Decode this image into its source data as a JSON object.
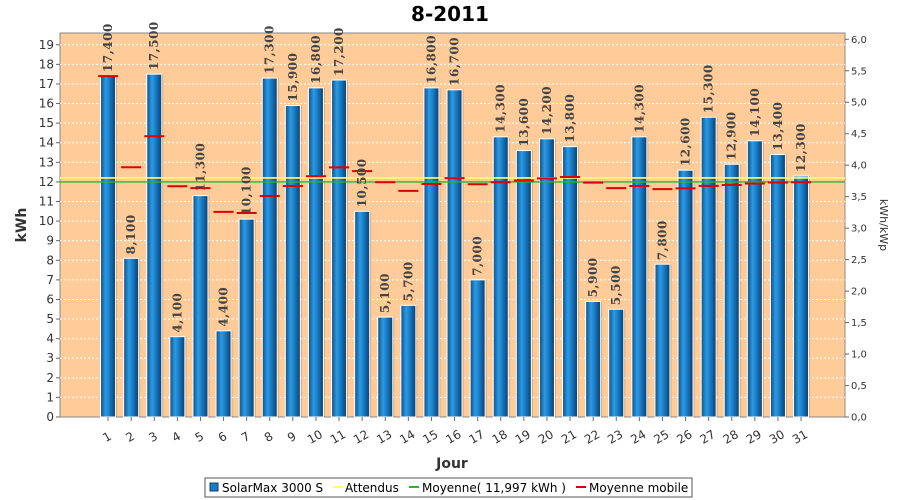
{
  "chart_data": {
    "type": "bar",
    "title": "8-2011",
    "xlabel": "Jour",
    "ylabel": "kWh",
    "y2label": "kWh/kWp",
    "ylim": [
      0,
      19.6
    ],
    "y2lim": [
      0,
      6.1
    ],
    "yticks": [
      "0",
      "1",
      "2",
      "3",
      "4",
      "5",
      "6",
      "7",
      "8",
      "9",
      "10",
      "11",
      "12",
      "13",
      "14",
      "15",
      "16",
      "17",
      "18",
      "19"
    ],
    "y2ticks": [
      "0,0",
      "0,5",
      "1,0",
      "1,5",
      "2,0",
      "2,5",
      "3,0",
      "3,5",
      "4,0",
      "4,5",
      "5,0",
      "5,5",
      "6,0"
    ],
    "categories": [
      "1",
      "2",
      "3",
      "4",
      "5",
      "6",
      "7",
      "8",
      "9",
      "10",
      "11",
      "12",
      "13",
      "14",
      "15",
      "16",
      "17",
      "18",
      "19",
      "20",
      "21",
      "22",
      "23",
      "24",
      "25",
      "26",
      "27",
      "28",
      "29",
      "30",
      "31"
    ],
    "series": [
      {
        "name": "SolarMax 3000 S",
        "color": "#1a7bc4",
        "values": [
          17.4,
          8.1,
          17.5,
          4.1,
          11.3,
          4.4,
          10.1,
          17.3,
          15.9,
          16.8,
          17.2,
          10.5,
          5.1,
          5.7,
          16.8,
          16.7,
          7.0,
          14.3,
          13.6,
          14.2,
          13.8,
          5.9,
          5.5,
          14.3,
          7.8,
          12.6,
          15.3,
          12.9,
          14.1,
          13.4,
          12.3
        ],
        "value_labels": [
          "17,400",
          "8,100",
          "17,500",
          "4,100",
          "11,300",
          "4,400",
          "10,100",
          "17,300",
          "15,900",
          "16,800",
          "17,200",
          "10,500",
          "5,100",
          "5,700",
          "16,800",
          "16,700",
          "7,000",
          "14,300",
          "13,600",
          "14,200",
          "13,800",
          "5,900",
          "5,500",
          "14,300",
          "7,800",
          "12,600",
          "15,300",
          "12,900",
          "14,100",
          "13,400",
          "12,300"
        ]
      },
      {
        "name": "Attendus",
        "color": "#ffff66",
        "value": 12.2
      },
      {
        "name": "Moyenne( 11,997 kWh )",
        "color": "#22bb22",
        "value": 11.997
      },
      {
        "name": "Moyenne mobile",
        "color": "#dd0000",
        "values": [
          17.4,
          12.75,
          14.33,
          11.78,
          11.68,
          10.47,
          10.41,
          11.28,
          11.79,
          12.29,
          12.74,
          12.55,
          11.98,
          11.54,
          11.89,
          12.19,
          11.88,
          11.98,
          12.07,
          12.18,
          12.25,
          11.96,
          11.68,
          11.79,
          11.63,
          11.67,
          11.8,
          11.84,
          11.92,
          11.97,
          11.98
        ]
      }
    ],
    "legend": {
      "position": "bottom",
      "items": [
        "SolarMax 3000 S",
        "Attendus",
        "Moyenne( 11,997 kWh )",
        "Moyenne mobile"
      ]
    },
    "grid": true,
    "background_color": "#ffcc99"
  }
}
